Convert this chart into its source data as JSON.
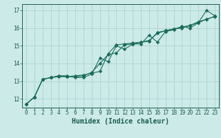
{
  "xlabel": "Humidex (Indice chaleur)",
  "background_color": "#cceae8",
  "grid_color": "#aad4d1",
  "line_color": "#1a6b5a",
  "xlim": [
    -0.5,
    23.5
  ],
  "ylim": [
    11.5,
    17.35
  ],
  "yticks": [
    12,
    13,
    14,
    15,
    16,
    17
  ],
  "xticks": [
    0,
    1,
    2,
    3,
    4,
    5,
    6,
    7,
    8,
    9,
    10,
    11,
    12,
    13,
    14,
    15,
    16,
    17,
    18,
    19,
    20,
    21,
    22,
    23
  ],
  "line1_x": [
    0,
    1,
    2,
    3,
    4,
    5,
    6,
    7,
    8,
    9,
    10,
    11,
    12,
    13,
    14,
    15,
    16,
    17,
    18,
    19,
    20,
    21,
    22,
    23
  ],
  "line1_y": [
    11.7,
    12.1,
    13.1,
    13.2,
    13.3,
    13.3,
    13.2,
    13.2,
    13.4,
    14.3,
    14.1,
    15.0,
    14.8,
    15.1,
    15.1,
    15.6,
    15.2,
    15.8,
    15.9,
    16.1,
    16.0,
    16.3,
    17.0,
    16.7
  ],
  "line2_x": [
    0,
    1,
    2,
    3,
    4,
    5,
    6,
    7,
    8,
    9,
    10,
    11,
    12,
    13,
    14,
    15,
    16,
    17,
    18,
    19,
    20,
    21,
    22,
    23
  ],
  "line2_y": [
    11.7,
    12.1,
    13.1,
    13.2,
    13.3,
    13.25,
    13.25,
    13.3,
    13.5,
    14.0,
    14.5,
    14.6,
    15.05,
    15.1,
    15.2,
    15.3,
    15.7,
    15.85,
    15.95,
    16.0,
    16.15,
    16.3,
    16.5,
    16.65
  ],
  "line3_x": [
    0,
    1,
    2,
    3,
    4,
    5,
    6,
    7,
    8,
    9,
    10,
    11,
    12,
    13,
    14,
    15,
    16,
    17,
    18,
    19,
    20,
    21,
    22,
    23
  ],
  "line3_y": [
    11.7,
    12.1,
    13.1,
    13.2,
    13.25,
    13.25,
    13.3,
    13.35,
    13.45,
    13.55,
    14.55,
    15.05,
    15.1,
    15.15,
    15.2,
    15.25,
    15.75,
    15.85,
    15.95,
    16.05,
    16.15,
    16.35,
    16.5,
    16.65
  ],
  "marker_size": 2.5,
  "line_width": 0.8,
  "tick_color": "#1a5c4e",
  "label_fontsize": 5.5,
  "xlabel_fontsize": 7.0
}
